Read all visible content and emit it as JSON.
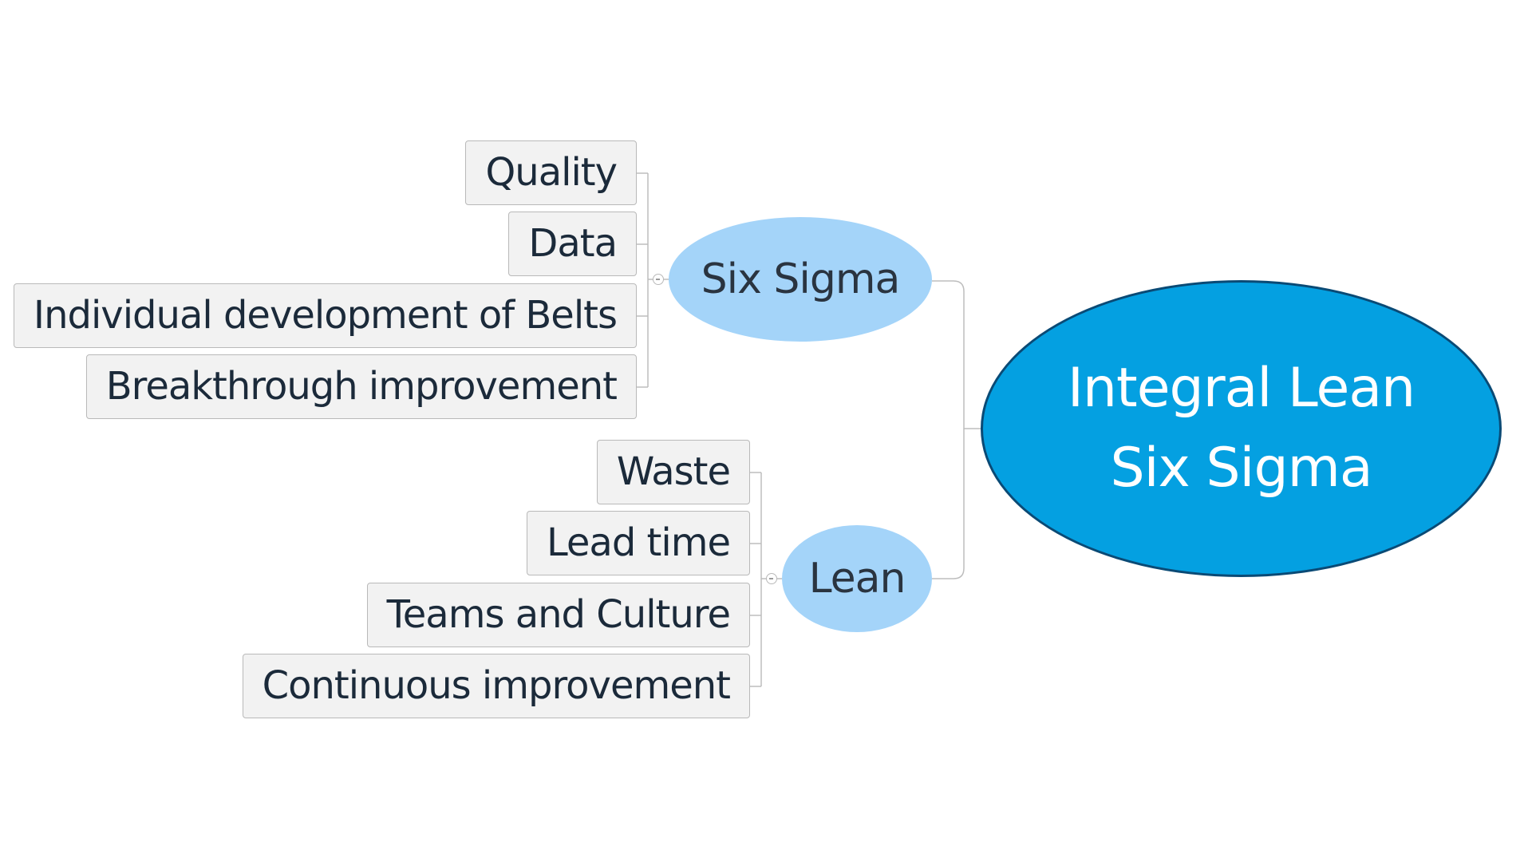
{
  "mindmap": {
    "root": {
      "line1": "Integral Lean",
      "line2": "Six Sigma"
    },
    "branches": [
      {
        "label": "Six Sigma",
        "children": [
          "Quality",
          "Data",
          "Individual development of Belts",
          "Breakthrough improvement"
        ]
      },
      {
        "label": "Lean",
        "children": [
          "Waste",
          "Lead time",
          "Teams and Culture",
          "Continuous improvement"
        ]
      }
    ]
  },
  "colors": {
    "root_fill": "#04a0e1",
    "root_border": "#0a4a75",
    "branch_fill": "#a4d4f9",
    "leaf_fill": "#f2f2f2",
    "leaf_border": "#b9b9b9",
    "connector": "#bdbdbd"
  }
}
